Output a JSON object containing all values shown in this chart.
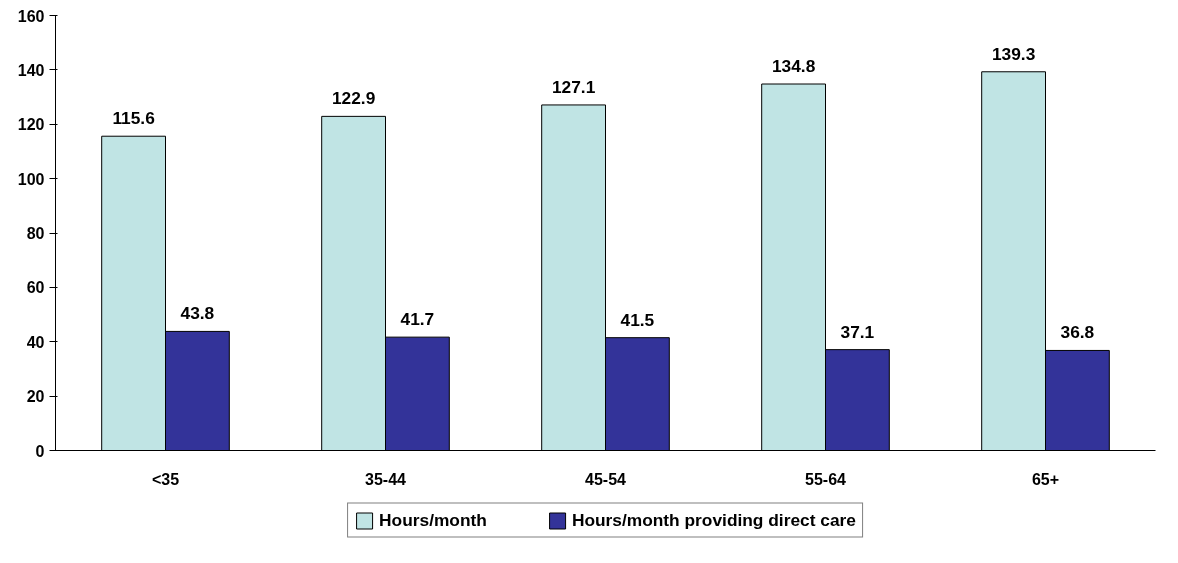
{
  "chart_data": {
    "type": "bar",
    "categories": [
      "<35",
      "35-44",
      "45-54",
      "55-64",
      "65+"
    ],
    "series": [
      {
        "name": "Hours/month",
        "color": "#c0e4e4",
        "values": [
          115.6,
          122.9,
          127.1,
          134.8,
          139.3
        ]
      },
      {
        "name": "Hours/month providing direct care",
        "color": "#333399",
        "values": [
          43.8,
          41.7,
          41.5,
          37.1,
          36.8
        ]
      }
    ],
    "ylim": [
      0,
      160
    ],
    "yticks": [
      0,
      20,
      40,
      60,
      80,
      100,
      120,
      140,
      160
    ],
    "grid": false,
    "legend": "bottom",
    "data_labels": true
  }
}
